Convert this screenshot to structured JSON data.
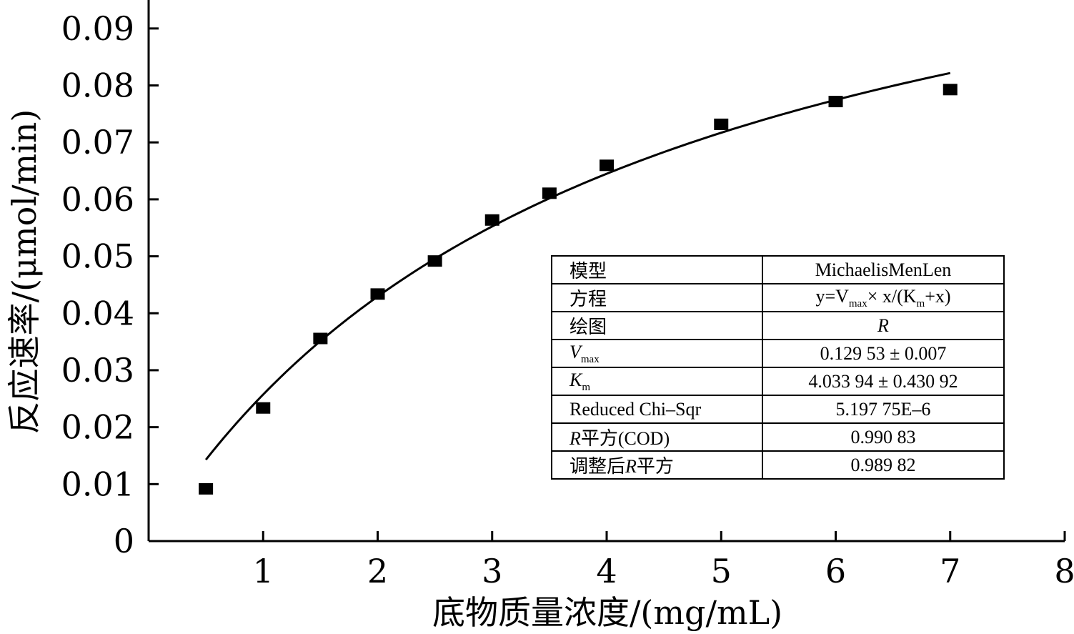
{
  "chart_data": {
    "type": "scatter",
    "xlabel": "底物质量浓度/(mg/mL)",
    "ylabel": "反应速率/(μmol/min)",
    "xlim": [
      0,
      8
    ],
    "ylim": [
      0,
      0.095
    ],
    "x_ticks": [
      "1",
      "2",
      "3",
      "4",
      "5",
      "6",
      "7",
      "8"
    ],
    "y_ticks": [
      "0",
      "0.01",
      "0.02",
      "0.03",
      "0.04",
      "0.05",
      "0.06",
      "0.07",
      "0.08",
      "0.09"
    ],
    "x_tick_values": [
      1,
      2,
      3,
      4,
      5,
      6,
      7,
      8
    ],
    "y_tick_values": [
      0,
      0.01,
      0.02,
      0.03,
      0.04,
      0.05,
      0.06,
      0.07,
      0.08,
      0.09
    ],
    "series": [
      {
        "marker": "square",
        "color": "#000000",
        "x": [
          0.5,
          1.0,
          1.5,
          2.0,
          2.5,
          3.0,
          3.5,
          4.0,
          5.0,
          6.0,
          7.0
        ],
        "y": [
          0.0093,
          0.0235,
          0.0357,
          0.0435,
          0.0493,
          0.0565,
          0.0612,
          0.0661,
          0.0733,
          0.0773,
          0.0794
        ]
      }
    ],
    "fit_curve": {
      "model": "MichaelisMenten",
      "vmax": 0.12953,
      "km": 4.03394,
      "x_range": [
        0.5,
        7.0
      ],
      "color": "#000000"
    },
    "grid": false,
    "fit_table": {
      "rows": [
        {
          "label": "模型",
          "value": "MichaelisMenLen"
        },
        {
          "label": "方程",
          "value_parts": [
            "y=V",
            "max",
            "× x/(K",
            "m",
            "+x)"
          ]
        },
        {
          "label": "绘图",
          "value": "R"
        },
        {
          "label_parts": [
            "V",
            "max"
          ],
          "value": "0.129 53 ± 0.007"
        },
        {
          "label_parts": [
            "K",
            "m"
          ],
          "value": "4.033 94 ± 0.430 92"
        },
        {
          "label": "Reduced Chi–Sqr",
          "value": "5.197 75E–6"
        },
        {
          "label_parts": [
            "R",
            "平方(COD)"
          ],
          "value": "0.990 83"
        },
        {
          "label_parts": [
            "调整后",
            "R",
            "平方"
          ],
          "value": "0.989 82"
        }
      ]
    }
  }
}
